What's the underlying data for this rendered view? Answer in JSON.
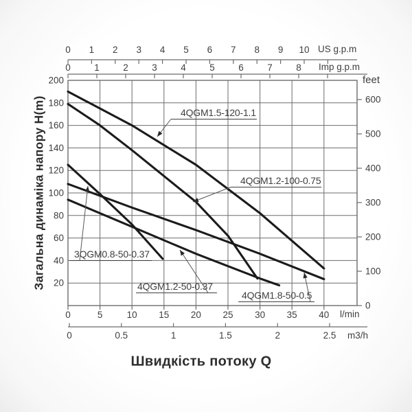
{
  "page": {
    "background": "#ffffff"
  },
  "chart_data": {
    "type": "line",
    "title_x": "Швидкість потоку Q",
    "title_y": "Загальна динаміка напору H(m)",
    "units": [
      "l/min",
      "m"
    ],
    "xlim": [
      0,
      45.2
    ],
    "ylim": [
      0,
      200
    ],
    "grid": true,
    "colors": {
      "curve": "#1b1b1b",
      "grid": "#6b6b6b",
      "text": "#3e3e3e",
      "title": "#2e2e2e",
      "leader": "#555555"
    },
    "axes": {
      "left_head_m": {
        "label": "",
        "ticks": [
          200,
          180,
          160,
          140,
          120,
          100,
          80,
          60,
          40,
          20
        ]
      },
      "right_feet": {
        "label": "feet",
        "ticks": [
          600,
          500,
          400,
          300,
          200,
          100,
          0
        ]
      },
      "top_us_gpm": {
        "label": "US g.p.m",
        "ticks": [
          0,
          1,
          2,
          3,
          4,
          5,
          6,
          7,
          8,
          9,
          10
        ]
      },
      "top_imp_gpm": {
        "label": "Imp g.p.m",
        "ticks": [
          0,
          1,
          2,
          3,
          4,
          5,
          6,
          7,
          8
        ]
      },
      "bottom_l_min": {
        "label": "l/min",
        "ticks": [
          0,
          5,
          10,
          15,
          20,
          25,
          30,
          35,
          40
        ]
      },
      "bottom_m3_h": {
        "label": "m3/h",
        "ticks": [
          0,
          0.5,
          1,
          1.5,
          2,
          2.5
        ]
      }
    },
    "series": [
      {
        "name": "4QGM1.5-120-1.1",
        "points": [
          [
            0,
            190
          ],
          [
            10,
            160
          ],
          [
            20,
            125
          ],
          [
            30,
            82
          ],
          [
            40,
            33
          ]
        ]
      },
      {
        "name": "4QGM1.2-100-0.75",
        "points": [
          [
            0,
            179
          ],
          [
            5,
            160
          ],
          [
            10,
            138
          ],
          [
            15,
            115
          ],
          [
            20,
            92
          ],
          [
            25,
            62
          ],
          [
            29.6,
            24
          ]
        ]
      },
      {
        "name": "3QGM0.8-50-0.37",
        "points": [
          [
            0,
            125
          ],
          [
            5,
            99
          ],
          [
            10,
            72
          ],
          [
            14.8,
            41.5
          ]
        ]
      },
      {
        "name": "4QGM1.2-50-0.37",
        "points": [
          [
            0,
            94
          ],
          [
            10,
            70
          ],
          [
            20,
            46
          ],
          [
            30,
            24
          ],
          [
            33,
            18
          ]
        ]
      },
      {
        "name": "4QGM1.8-50-0.5",
        "points": [
          [
            0,
            108
          ],
          [
            10,
            87
          ],
          [
            20,
            67
          ],
          [
            30,
            46
          ],
          [
            40,
            23.5
          ]
        ]
      }
    ]
  }
}
